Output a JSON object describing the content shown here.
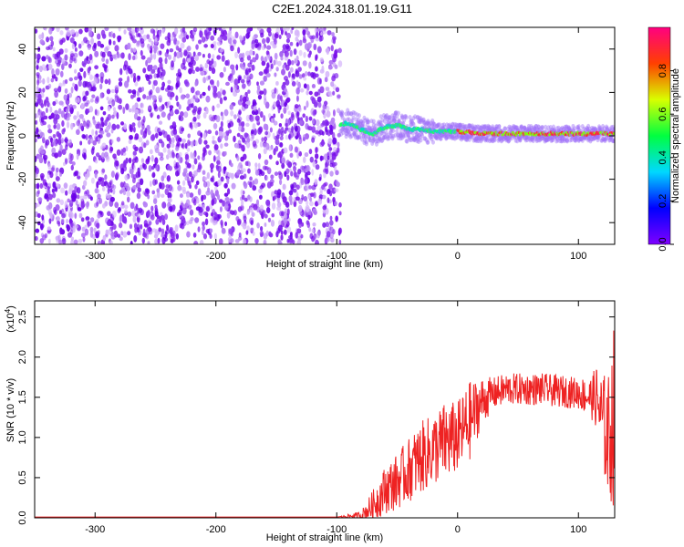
{
  "title": "C2E1.2024.318.01.19.G11",
  "colors": {
    "snr_line": "#ee2222",
    "spectrogram_points": "#6a00e8",
    "colorbar_stops": [
      "#7f00ff",
      "#0000ff",
      "#00d8ff",
      "#00ff40",
      "#d8ff00",
      "#ff4000",
      "#ff0080"
    ]
  },
  "chart_data": [
    {
      "type": "heatmap",
      "name": "spectrogram",
      "xlabel": "Height of straight line (km)",
      "ylabel": "Frequency (Hz)",
      "xlim": [
        -350,
        130
      ],
      "ylim": [
        -50,
        50
      ],
      "xticks": [
        -300,
        -200,
        -100,
        0,
        100
      ],
      "xtick_labels": [
        "-300",
        "-200",
        "-100",
        "0",
        "100"
      ],
      "yticks": [
        -40,
        -20,
        0,
        20,
        40
      ],
      "ytick_labels": [
        "-40",
        "-20",
        "0",
        "20",
        "40"
      ],
      "noise_region_x": [
        -350,
        -97
      ],
      "signal_track": [
        {
          "x": -97,
          "y": 5
        },
        {
          "x": -90,
          "y": 6
        },
        {
          "x": -80,
          "y": 3
        },
        {
          "x": -70,
          "y": 1
        },
        {
          "x": -60,
          "y": 4
        },
        {
          "x": -50,
          "y": 5
        },
        {
          "x": -40,
          "y": 3
        },
        {
          "x": -30,
          "y": 3
        },
        {
          "x": -20,
          "y": 2
        },
        {
          "x": 0,
          "y": 2
        },
        {
          "x": 20,
          "y": 1
        },
        {
          "x": 40,
          "y": 1
        },
        {
          "x": 60,
          "y": 1
        },
        {
          "x": 80,
          "y": 1
        },
        {
          "x": 100,
          "y": 1
        },
        {
          "x": 130,
          "y": 1
        }
      ],
      "colorbar": {
        "label": "Normalized spectral amplitude",
        "range": [
          0,
          1
        ],
        "ticks": [
          0.0,
          0.2,
          0.4,
          0.6,
          0.8
        ],
        "tick_labels": [
          "0.0",
          "0.2",
          "0.4",
          "0.6",
          "0.8"
        ]
      }
    },
    {
      "type": "line",
      "name": "snr",
      "xlabel": "Height of straight line (km)",
      "ylabel": "SNR (10 * v/v)",
      "y_multiplier_label": "(x10",
      "y_multiplier_exp": "4",
      "y_multiplier_close": ")",
      "xlim": [
        -350,
        130
      ],
      "ylim": [
        0,
        2.7
      ],
      "xticks": [
        -300,
        -200,
        -100,
        0,
        100
      ],
      "xtick_labels": [
        "-300",
        "-200",
        "-100",
        "0",
        "100"
      ],
      "yticks": [
        0.0,
        0.5,
        1.0,
        1.5,
        2.0,
        2.5
      ],
      "ytick_labels": [
        "0.0",
        "0.5",
        "1.0",
        "1.5",
        "2.0",
        "2.5"
      ],
      "x": [
        -350,
        -300,
        -200,
        -100,
        -80,
        -70,
        -60,
        -50,
        -40,
        -30,
        -20,
        -10,
        0,
        10,
        20,
        30,
        40,
        50,
        60,
        70,
        80,
        90,
        100,
        110,
        115,
        120,
        125,
        130
      ],
      "y": [
        0.01,
        0.01,
        0.01,
        0.01,
        0.03,
        0.15,
        0.35,
        0.45,
        0.6,
        0.75,
        0.85,
        0.95,
        1.0,
        1.2,
        1.45,
        1.55,
        1.6,
        1.6,
        1.6,
        1.6,
        1.58,
        1.57,
        1.55,
        1.5,
        1.5,
        1.2,
        1.0,
        1.3
      ],
      "noise_amplitude": [
        0,
        0,
        0,
        0,
        0.05,
        0.2,
        0.3,
        0.35,
        0.4,
        0.45,
        0.45,
        0.5,
        0.45,
        0.5,
        0.3,
        0.2,
        0.2,
        0.2,
        0.2,
        0.2,
        0.2,
        0.2,
        0.2,
        0.25,
        0.4,
        0.6,
        0.8,
        1.2
      ]
    }
  ]
}
